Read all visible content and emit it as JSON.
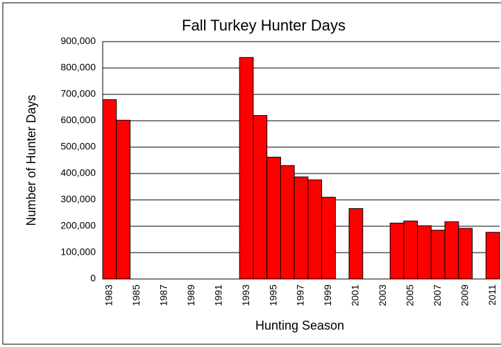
{
  "chart_data": {
    "type": "bar",
    "title": "Fall Turkey Hunter Days",
    "x_label": "Hunting Season",
    "y_label": "Number of Hunter Days",
    "categories": [
      "1983",
      null,
      "1985",
      null,
      "1987",
      null,
      "1989",
      null,
      "1991",
      null,
      "1993",
      null,
      "1995",
      null,
      "1997",
      null,
      "1999",
      null,
      "2001",
      null,
      "2003",
      null,
      "2005",
      null,
      "2007",
      null,
      "2009",
      null,
      "2011"
    ],
    "values": [
      680000,
      602000,
      null,
      null,
      null,
      null,
      null,
      null,
      null,
      null,
      840000,
      620000,
      462000,
      430000,
      387000,
      376000,
      310000,
      null,
      267000,
      null,
      null,
      212000,
      220000,
      202000,
      185000,
      217000,
      192000,
      null,
      177000
    ],
    "color": "#ff0000",
    "ylim": [
      0,
      900000
    ],
    "yticks": [
      0,
      {
        "value": 100000,
        "label": "100,000"
      },
      {
        "value": 200000,
        "label": "200,000"
      },
      {
        "value": 300000,
        "label": "300,000"
      },
      {
        "value": 400000,
        "label": "400,000"
      },
      {
        "value": 500000,
        "label": "500,000"
      },
      {
        "value": 600000,
        "label": "600,000"
      },
      {
        "value": 700000,
        "label": "700,000"
      },
      {
        "value": 800000,
        "label": "800,000"
      },
      {
        "value": 900000,
        "label": "900,000"
      }
    ],
    "grid": true
  }
}
